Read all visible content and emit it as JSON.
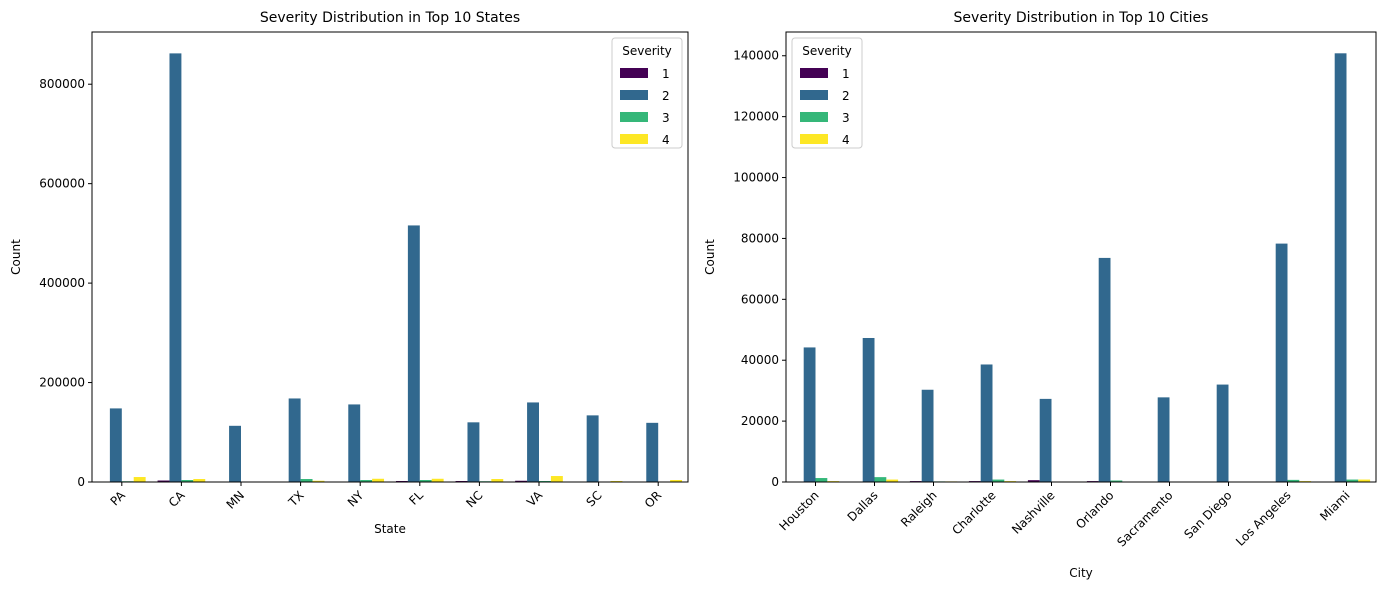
{
  "chart_data": [
    {
      "type": "bar",
      "title": "Severity Distribution in Top 10 States",
      "xlabel": "State",
      "ylabel": "Count",
      "ylim": [
        0,
        905000
      ],
      "yticks": [
        0,
        200000,
        400000,
        600000,
        800000
      ],
      "grid": false,
      "legend": {
        "title": "Severity",
        "placement": "top-right"
      },
      "categories": [
        "PA",
        "CA",
        "MN",
        "TX",
        "NY",
        "FL",
        "NC",
        "VA",
        "SC",
        "OR"
      ],
      "series": [
        {
          "name": "1",
          "color": "#440154",
          "values": [
            0,
            3000,
            0,
            800,
            300,
            2000,
            2000,
            2500,
            0,
            0
          ]
        },
        {
          "name": "2",
          "color": "#31688e",
          "values": [
            148000,
            862000,
            113000,
            168000,
            156000,
            516000,
            120000,
            160000,
            134000,
            119000
          ]
        },
        {
          "name": "3",
          "color": "#35b779",
          "values": [
            1500,
            4000,
            500,
            6000,
            4000,
            4000,
            1500,
            2000,
            500,
            500
          ]
        },
        {
          "name": "4",
          "color": "#fde725",
          "values": [
            10000,
            6000,
            400,
            2500,
            6500,
            6500,
            6000,
            12000,
            2000,
            4000
          ]
        }
      ]
    },
    {
      "type": "bar",
      "title": "Severity Distribution in Top 10 Cities",
      "xlabel": "City",
      "ylabel": "Count",
      "ylim": [
        0,
        147800
      ],
      "yticks": [
        0,
        20000,
        40000,
        60000,
        80000,
        100000,
        120000,
        140000
      ],
      "grid": false,
      "legend": {
        "title": "Severity",
        "placement": "top-left"
      },
      "categories": [
        "Houston",
        "Dallas",
        "Raleigh",
        "Charlotte",
        "Nashville",
        "Orlando",
        "Sacramento",
        "San Diego",
        "Los Angeles",
        "Miami"
      ],
      "series": [
        {
          "name": "1",
          "color": "#440154",
          "values": [
            100,
            100,
            300,
            300,
            600,
            300,
            0,
            0,
            100,
            0
          ]
        },
        {
          "name": "2",
          "color": "#31688e",
          "values": [
            44200,
            47300,
            30300,
            38600,
            27300,
            73600,
            27800,
            32000,
            78300,
            140800
          ]
        },
        {
          "name": "3",
          "color": "#35b779",
          "values": [
            1300,
            1600,
            200,
            800,
            100,
            500,
            100,
            100,
            700,
            800
          ]
        },
        {
          "name": "4",
          "color": "#fde725",
          "values": [
            300,
            800,
            200,
            300,
            100,
            100,
            100,
            100,
            300,
            800
          ]
        }
      ]
    }
  ]
}
